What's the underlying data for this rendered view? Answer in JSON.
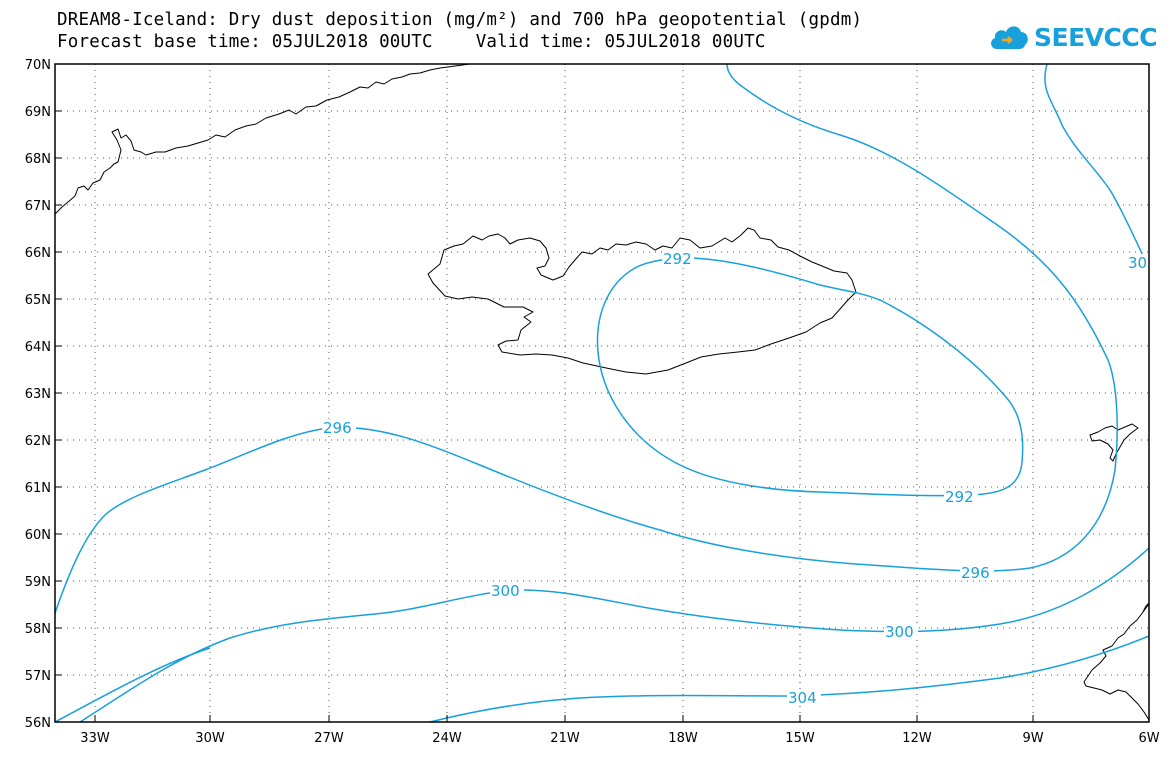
{
  "header": {
    "title_line1": "DREAM8-Iceland: Dry dust deposition (mg/m²) and 700 hPa geopotential (gpdm)",
    "title_line2": "Forecast base time: 05JUL2018 00UTC    Valid time: 05JUL2018 00UTC"
  },
  "logo": {
    "text": "SEEVCCC",
    "icon": "cloud-icon",
    "color": "#18a0dc"
  },
  "map": {
    "contour_color": "#18a0dc",
    "coastline_color": "#000000",
    "lat_labels": [
      "70N",
      "69N",
      "68N",
      "67N",
      "66N",
      "65N",
      "64N",
      "63N",
      "62N",
      "61N",
      "60N",
      "59N",
      "58N",
      "57N",
      "56N"
    ],
    "lon_labels": [
      "33W",
      "30W",
      "27W",
      "24W",
      "21W",
      "18W",
      "15W",
      "12W",
      "9W",
      "6W"
    ],
    "contour_labels": [
      {
        "id": "c292a",
        "text": "292"
      },
      {
        "id": "c292b",
        "text": "292"
      },
      {
        "id": "c296a",
        "text": "296"
      },
      {
        "id": "c296b",
        "text": "296"
      },
      {
        "id": "c300a",
        "text": "300"
      },
      {
        "id": "c300b",
        "text": "300"
      },
      {
        "id": "c304",
        "text": "304"
      },
      {
        "id": "c30e",
        "text": "30"
      }
    ]
  }
}
